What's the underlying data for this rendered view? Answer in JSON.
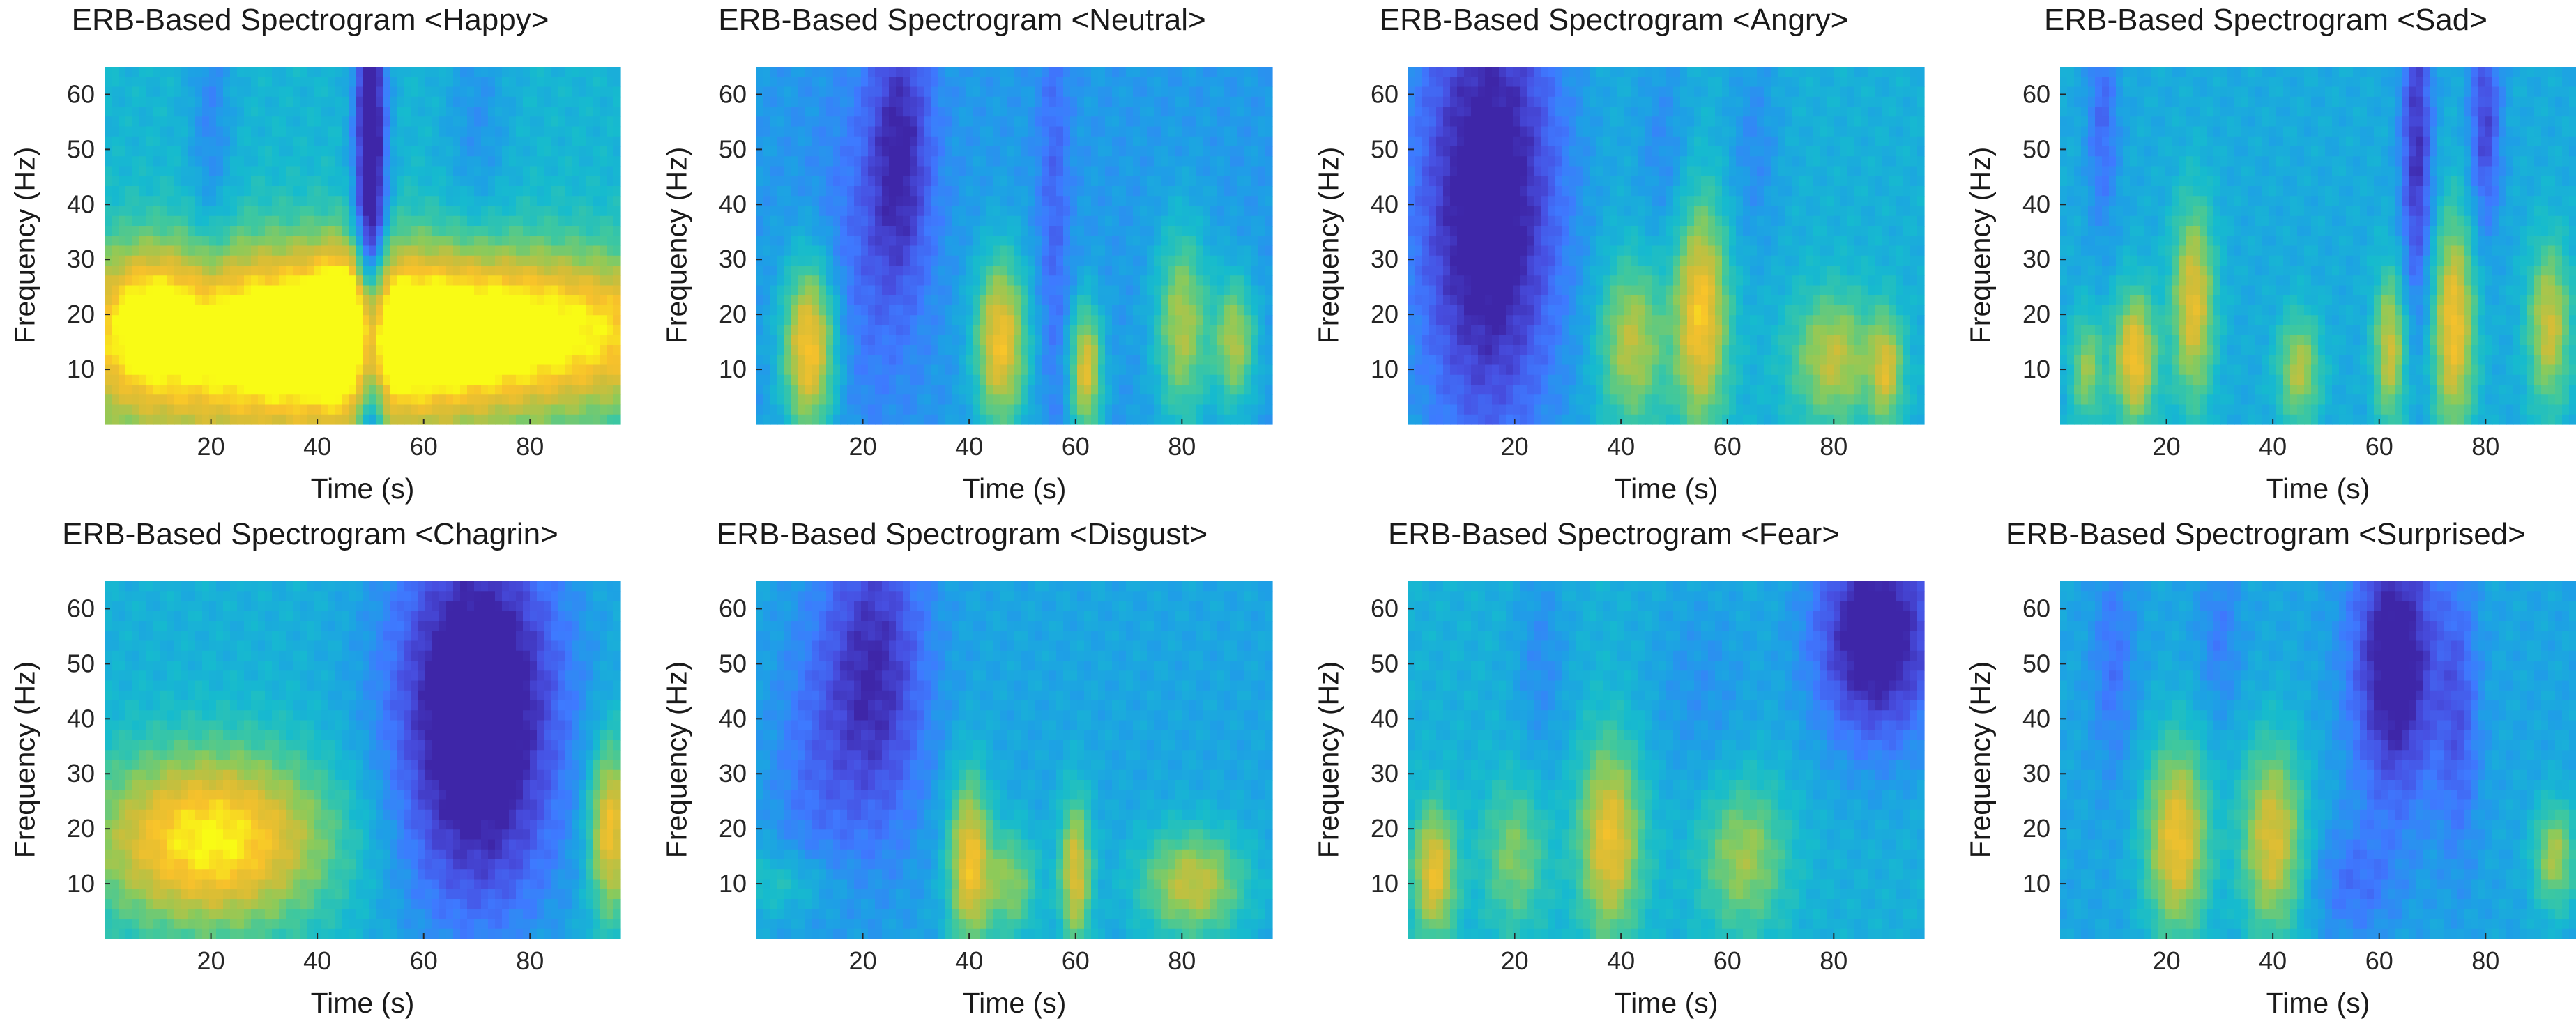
{
  "colors": {
    "colormap": [
      "#3e26a8",
      "#4750e2",
      "#3e7aff",
      "#1e9fe6",
      "#16bbce",
      "#3fc89e",
      "#8cca5a",
      "#d1bd38",
      "#f8c12b",
      "#f9fb15"
    ],
    "axis": "#262626"
  },
  "chart_data": [
    {
      "type": "heatmap",
      "title": "ERB-Based Spectrogram <Happy>",
      "xlabel": "Time (s)",
      "ylabel": "Frequency (Hz)",
      "xlim": [
        0,
        97
      ],
      "ylim": [
        0,
        65
      ],
      "xticks": [
        20,
        40,
        60,
        80
      ],
      "yticks": [
        10,
        20,
        30,
        40,
        50,
        60
      ],
      "base_level": 0.42,
      "blobs": [
        {
          "t": 30,
          "f": 14,
          "w": 45,
          "h": 18,
          "v": 0.55
        },
        {
          "t": 75,
          "f": 17,
          "w": 50,
          "h": 14,
          "v": 0.55
        },
        {
          "t": 8,
          "f": 20,
          "w": 8,
          "h": 12,
          "v": 0.25
        },
        {
          "t": 45,
          "f": 20,
          "w": 6,
          "h": 12,
          "v": 0.2
        },
        {
          "t": 50,
          "f": 40,
          "w": 3,
          "h": 60,
          "v": -0.6
        },
        {
          "t": 20,
          "f": 55,
          "w": 4,
          "h": 30,
          "v": -0.15
        },
        {
          "t": 70,
          "f": 55,
          "w": 6,
          "h": 20,
          "v": -0.12
        }
      ]
    },
    {
      "type": "heatmap",
      "title": "ERB-Based Spectrogram <Neutral>",
      "xlabel": "Time (s)",
      "ylabel": "Frequency (Hz)",
      "xlim": [
        0,
        97
      ],
      "ylim": [
        0,
        65
      ],
      "xticks": [
        20,
        40,
        60,
        80
      ],
      "yticks": [
        10,
        20,
        30,
        40,
        50,
        60
      ],
      "base_level": 0.32,
      "blobs": [
        {
          "t": 10,
          "f": 14,
          "w": 5,
          "h": 16,
          "v": 0.6
        },
        {
          "t": 46,
          "f": 15,
          "w": 5,
          "h": 16,
          "v": 0.55
        },
        {
          "t": 62,
          "f": 10,
          "w": 3,
          "h": 12,
          "v": 0.5
        },
        {
          "t": 80,
          "f": 18,
          "w": 5,
          "h": 18,
          "v": 0.4
        },
        {
          "t": 90,
          "f": 15,
          "w": 4,
          "h": 12,
          "v": 0.4
        },
        {
          "t": 27,
          "f": 50,
          "w": 6,
          "h": 25,
          "v": -0.3
        },
        {
          "t": 56,
          "f": 40,
          "w": 3,
          "h": 40,
          "v": -0.15
        },
        {
          "t": 20,
          "f": 30,
          "w": 10,
          "h": 30,
          "v": -0.12
        }
      ]
    },
    {
      "type": "heatmap",
      "title": "ERB-Based Spectrogram <Angry>",
      "xlabel": "Time (s)",
      "ylabel": "Frequency (Hz)",
      "xlim": [
        0,
        97
      ],
      "ylim": [
        0,
        65
      ],
      "xticks": [
        20,
        40,
        60,
        80
      ],
      "yticks": [
        10,
        20,
        30,
        40,
        50,
        60
      ],
      "base_level": 0.4,
      "blobs": [
        {
          "t": 15,
          "f": 40,
          "w": 14,
          "h": 45,
          "v": -0.5
        },
        {
          "t": 55,
          "f": 20,
          "w": 5,
          "h": 20,
          "v": 0.5
        },
        {
          "t": 42,
          "f": 15,
          "w": 6,
          "h": 15,
          "v": 0.35
        },
        {
          "t": 80,
          "f": 12,
          "w": 8,
          "h": 12,
          "v": 0.35
        },
        {
          "t": 90,
          "f": 10,
          "w": 3,
          "h": 10,
          "v": 0.35
        },
        {
          "t": 48,
          "f": 50,
          "w": 5,
          "h": 20,
          "v": -0.12
        },
        {
          "t": 65,
          "f": 50,
          "w": 5,
          "h": 20,
          "v": -0.12
        }
      ]
    },
    {
      "type": "heatmap",
      "title": "ERB-Based Spectrogram <Sad>",
      "xlabel": "Time (s)",
      "ylabel": "Frequency (Hz)",
      "xlim": [
        0,
        97
      ],
      "ylim": [
        0,
        65
      ],
      "xticks": [
        20,
        40,
        60,
        80
      ],
      "yticks": [
        10,
        20,
        30,
        40,
        50,
        60
      ],
      "base_level": 0.38,
      "blobs": [
        {
          "t": 14,
          "f": 12,
          "w": 4,
          "h": 12,
          "v": 0.5
        },
        {
          "t": 25,
          "f": 22,
          "w": 4,
          "h": 18,
          "v": 0.45
        },
        {
          "t": 45,
          "f": 10,
          "w": 4,
          "h": 10,
          "v": 0.35
        },
        {
          "t": 62,
          "f": 14,
          "w": 3,
          "h": 14,
          "v": 0.4
        },
        {
          "t": 74,
          "f": 18,
          "w": 4,
          "h": 20,
          "v": 0.5
        },
        {
          "t": 92,
          "f": 18,
          "w": 4,
          "h": 15,
          "v": 0.4
        },
        {
          "t": 5,
          "f": 10,
          "w": 3,
          "h": 10,
          "v": 0.3
        },
        {
          "t": 67,
          "f": 50,
          "w": 3,
          "h": 30,
          "v": -0.35
        },
        {
          "t": 80,
          "f": 55,
          "w": 3,
          "h": 20,
          "v": -0.3
        },
        {
          "t": 8,
          "f": 55,
          "w": 3,
          "h": 20,
          "v": -0.2
        }
      ]
    },
    {
      "type": "heatmap",
      "title": "ERB-Based Spectrogram <Chagrin>",
      "xlabel": "Time (s)",
      "ylabel": "Frequency (Hz)",
      "xlim": [
        0,
        97
      ],
      "ylim": [
        0,
        65
      ],
      "xticks": [
        20,
        40,
        60,
        80
      ],
      "yticks": [
        10,
        20,
        30,
        40,
        50,
        60
      ],
      "base_level": 0.4,
      "blobs": [
        {
          "t": 20,
          "f": 18,
          "w": 22,
          "h": 16,
          "v": 0.6
        },
        {
          "t": 95,
          "f": 20,
          "w": 4,
          "h": 16,
          "v": 0.5
        },
        {
          "t": 70,
          "f": 45,
          "w": 16,
          "h": 30,
          "v": -0.55
        },
        {
          "t": 70,
          "f": 15,
          "w": 16,
          "h": 20,
          "v": -0.15
        }
      ]
    },
    {
      "type": "heatmap",
      "title": "ERB-Based Spectrogram <Disgust>",
      "xlabel": "Time (s)",
      "ylabel": "Frequency (Hz)",
      "xlim": [
        0,
        97
      ],
      "ylim": [
        0,
        65
      ],
      "xticks": [
        20,
        40,
        60,
        80
      ],
      "yticks": [
        10,
        20,
        30,
        40,
        50,
        60
      ],
      "base_level": 0.36,
      "blobs": [
        {
          "t": 22,
          "f": 48,
          "w": 10,
          "h": 30,
          "v": -0.35
        },
        {
          "t": 10,
          "f": 30,
          "w": 8,
          "h": 25,
          "v": -0.12
        },
        {
          "t": 40,
          "f": 14,
          "w": 4,
          "h": 16,
          "v": 0.5
        },
        {
          "t": 60,
          "f": 12,
          "w": 3,
          "h": 14,
          "v": 0.45
        },
        {
          "t": 48,
          "f": 10,
          "w": 5,
          "h": 10,
          "v": 0.3
        },
        {
          "t": 82,
          "f": 10,
          "w": 10,
          "h": 10,
          "v": 0.4
        },
        {
          "t": 5,
          "f": 10,
          "w": 10,
          "h": 6,
          "v": 0.15
        }
      ]
    },
    {
      "type": "heatmap",
      "title": "ERB-Based Spectrogram <Fear>",
      "xlabel": "Time (s)",
      "ylabel": "Frequency (Hz)",
      "xlim": [
        0,
        97
      ],
      "ylim": [
        0,
        65
      ],
      "xticks": [
        20,
        40,
        60,
        80
      ],
      "yticks": [
        10,
        20,
        30,
        40,
        50,
        60
      ],
      "base_level": 0.4,
      "blobs": [
        {
          "t": 5,
          "f": 12,
          "w": 4,
          "h": 12,
          "v": 0.45
        },
        {
          "t": 20,
          "f": 15,
          "w": 6,
          "h": 14,
          "v": 0.25
        },
        {
          "t": 38,
          "f": 18,
          "w": 6,
          "h": 18,
          "v": 0.45
        },
        {
          "t": 63,
          "f": 15,
          "w": 8,
          "h": 14,
          "v": 0.3
        },
        {
          "t": 88,
          "f": 55,
          "w": 12,
          "h": 20,
          "v": -0.5
        },
        {
          "t": 25,
          "f": 50,
          "w": 5,
          "h": 20,
          "v": -0.12
        },
        {
          "t": 55,
          "f": 45,
          "w": 10,
          "h": 20,
          "v": -0.1
        }
      ]
    },
    {
      "type": "heatmap",
      "title": "ERB-Based Spectrogram <Surprised>",
      "xlabel": "Time (s)",
      "ylabel": "Frequency (Hz)",
      "xlim": [
        0,
        97
      ],
      "ylim": [
        0,
        65
      ],
      "xticks": [
        20,
        40,
        60,
        80
      ],
      "yticks": [
        10,
        20,
        30,
        40,
        50,
        60
      ],
      "base_level": 0.36,
      "blobs": [
        {
          "t": 22,
          "f": 18,
          "w": 6,
          "h": 18,
          "v": 0.5
        },
        {
          "t": 40,
          "f": 18,
          "w": 6,
          "h": 18,
          "v": 0.45
        },
        {
          "t": 93,
          "f": 15,
          "w": 4,
          "h": 10,
          "v": 0.35
        },
        {
          "t": 63,
          "f": 50,
          "w": 8,
          "h": 25,
          "v": -0.45
        },
        {
          "t": 75,
          "f": 40,
          "w": 4,
          "h": 25,
          "v": -0.2
        },
        {
          "t": 10,
          "f": 50,
          "w": 4,
          "h": 20,
          "v": -0.15
        },
        {
          "t": 30,
          "f": 55,
          "w": 4,
          "h": 15,
          "v": -0.12
        },
        {
          "t": 55,
          "f": 10,
          "w": 8,
          "h": 10,
          "v": -0.15
        }
      ]
    }
  ]
}
